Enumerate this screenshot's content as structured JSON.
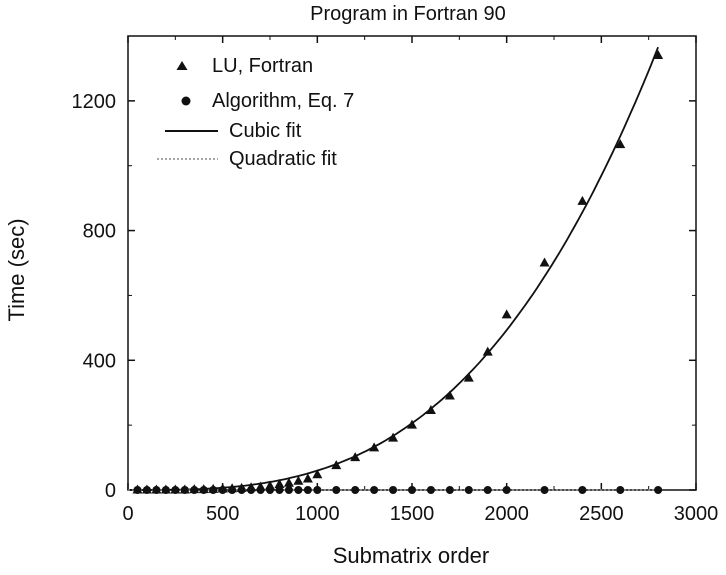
{
  "chart_data": {
    "type": "scatter",
    "title": "Program in Fortran 90",
    "xlabel": "Submatrix order",
    "ylabel": "Time (sec)",
    "xlim": [
      0,
      3000
    ],
    "ylim": [
      0,
      1400
    ],
    "x_ticks": [
      "0",
      "500",
      "1000",
      "1500",
      "2000",
      "2500",
      "3000"
    ],
    "y_ticks": [
      "0",
      "400",
      "800",
      "1200"
    ],
    "x_tick_values": [
      0,
      500,
      1000,
      1500,
      2000,
      2500,
      3000
    ],
    "y_tick_values": [
      0,
      400,
      800,
      1200
    ],
    "grid": false,
    "legend_position": "top-left",
    "series": [
      {
        "name": "LU, Fortran",
        "marker": "triangle",
        "x": [
          50,
          100,
          150,
          200,
          250,
          300,
          350,
          400,
          450,
          500,
          550,
          600,
          650,
          700,
          750,
          800,
          850,
          900,
          950,
          1000,
          1100,
          1200,
          1300,
          1400,
          1500,
          1600,
          1700,
          1800,
          1900,
          2000,
          2200,
          2400,
          2600,
          2800
        ],
        "y": [
          0,
          0,
          0,
          0,
          0,
          0,
          1,
          1,
          2,
          3,
          4,
          5,
          7,
          9,
          12,
          17,
          21,
          27,
          34,
          47,
          75,
          100,
          130,
          160,
          200,
          245,
          290,
          345,
          425,
          540,
          700,
          890,
          1065,
          1340
        ]
      },
      {
        "name": "Algorithm, Eq. 7",
        "marker": "circle",
        "x": [
          50,
          100,
          150,
          200,
          250,
          300,
          350,
          400,
          450,
          500,
          550,
          600,
          650,
          700,
          750,
          800,
          850,
          900,
          950,
          1000,
          1100,
          1200,
          1300,
          1400,
          1500,
          1600,
          1700,
          1800,
          1900,
          2000,
          2200,
          2400,
          2600,
          2800
        ],
        "y": [
          0,
          0,
          0,
          0,
          0,
          0,
          0,
          0,
          0,
          0,
          0,
          0,
          0,
          0,
          0,
          0,
          0,
          0,
          0,
          0,
          0,
          0,
          0,
          0,
          0,
          0,
          0,
          0,
          0,
          0,
          0,
          0,
          0,
          0
        ]
      },
      {
        "name": "Cubic fit",
        "line": "solid",
        "fit_to": "LU, Fortran"
      },
      {
        "name": "Quadratic fit",
        "line": "dotted",
        "fit_to": "Algorithm, Eq. 7"
      }
    ]
  }
}
